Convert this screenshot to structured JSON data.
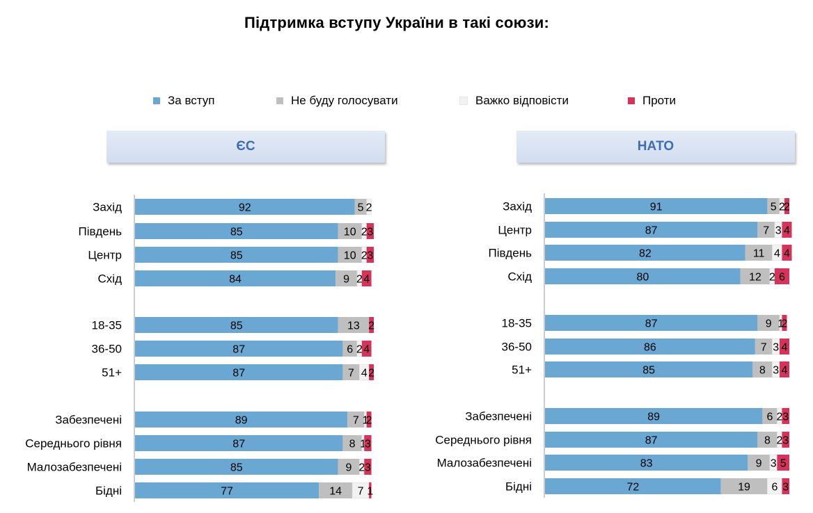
{
  "title": "Підтримка вступу України в такі союзи:",
  "legend": [
    {
      "label": "За вступ",
      "color": "#6aa8d3"
    },
    {
      "label": "Не буду голосувати",
      "color": "#bfbfbf"
    },
    {
      "label": "Важко відповісти",
      "color": "#f2f2f2"
    },
    {
      "label": "Проти",
      "color": "#d6335b"
    }
  ],
  "chart_data": [
    {
      "type": "bar",
      "orientation": "horizontal",
      "stacked": true,
      "title": "ЄС",
      "categories": [
        "Захід",
        "Південь",
        "Центр",
        "Схід",
        "18-35",
        "36-50",
        "51+",
        "Забезпечені",
        "Середнього рівня",
        "Малозабезпечені",
        "Бідні"
      ],
      "groups": [
        [
          0,
          1,
          2,
          3
        ],
        [
          4,
          5,
          6
        ],
        [
          7,
          8,
          9,
          10
        ]
      ],
      "series": [
        {
          "name": "За вступ",
          "values": [
            92,
            85,
            85,
            84,
            85,
            87,
            87,
            89,
            87,
            85,
            77
          ]
        },
        {
          "name": "Не буду голосувати",
          "values": [
            5,
            10,
            10,
            9,
            13,
            6,
            7,
            7,
            8,
            9,
            14
          ]
        },
        {
          "name": "Важко відповісти",
          "values": [
            2,
            2,
            2,
            2,
            0,
            2,
            4,
            1,
            1,
            2,
            7
          ]
        },
        {
          "name": "Проти",
          "values": [
            0,
            3,
            3,
            4,
            2,
            4,
            2,
            2,
            3,
            3,
            1
          ]
        }
      ]
    },
    {
      "type": "bar",
      "orientation": "horizontal",
      "stacked": true,
      "title": "НАТО",
      "categories": [
        "Захід",
        "Центр",
        "Південь",
        "Схід",
        "18-35",
        "36-50",
        "51+",
        "Забезпечені",
        "Середнього рівня",
        "Малозабезпечені",
        "Бідні"
      ],
      "groups": [
        [
          0,
          1,
          2,
          3
        ],
        [
          4,
          5,
          6
        ],
        [
          7,
          8,
          9,
          10
        ]
      ],
      "series": [
        {
          "name": "За вступ",
          "values": [
            91,
            87,
            82,
            80,
            87,
            86,
            85,
            89,
            87,
            83,
            72
          ]
        },
        {
          "name": "Не буду голосувати",
          "values": [
            5,
            7,
            11,
            12,
            9,
            7,
            8,
            6,
            8,
            9,
            19
          ]
        },
        {
          "name": "Важко відповісти",
          "values": [
            2,
            3,
            4,
            2,
            1,
            3,
            3,
            2,
            2,
            3,
            6
          ]
        },
        {
          "name": "Проти",
          "values": [
            2,
            4,
            4,
            6,
            2,
            4,
            4,
            3,
            3,
            5,
            3
          ]
        }
      ]
    }
  ]
}
